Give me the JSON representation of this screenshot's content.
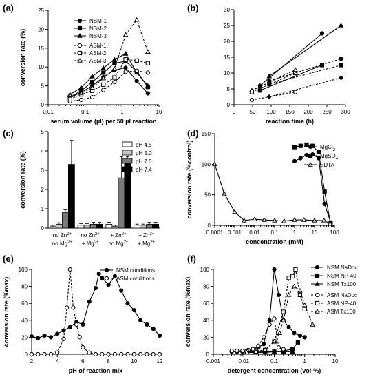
{
  "chart_data": [
    {
      "panel": "(a)",
      "type": "line",
      "xlabel": "serum volume (µl) per 50 µl reaction",
      "ylabel": "conversion rate (%)",
      "xscale": "log",
      "xlim": [
        0.01,
        10
      ],
      "ylim": [
        0,
        25
      ],
      "xticks": [
        0.01,
        0.1,
        1,
        10
      ],
      "xtick_labels": [
        "0.01",
        "0.1",
        "1",
        "10"
      ],
      "yticks": [
        0,
        5,
        10,
        15,
        20,
        25
      ],
      "legend_position": "top-left",
      "series": [
        {
          "name": "NSM-1",
          "marker": "filled-circle",
          "dash": false,
          "x": [
            0.039,
            0.078,
            0.156,
            0.3125,
            0.625,
            1.25,
            2.5,
            5
          ],
          "y": [
            1.8,
            3.3,
            5.0,
            7.3,
            9.2,
            9.8,
            6.3,
            3.0
          ]
        },
        {
          "name": "NSM-2",
          "marker": "filled-square",
          "dash": false,
          "x": [
            0.039,
            0.078,
            0.156,
            0.3125,
            0.625,
            1.25,
            2.5,
            5
          ],
          "y": [
            2.0,
            3.7,
            6.0,
            8.5,
            11.0,
            11.5,
            8.8,
            4.7
          ]
        },
        {
          "name": "NSM-3",
          "marker": "filled-triangle",
          "dash": false,
          "x": [
            0.039,
            0.078,
            0.156,
            0.3125,
            0.625,
            1.25,
            2.5,
            5
          ],
          "y": [
            2.7,
            4.5,
            7.5,
            9.7,
            12.0,
            13.5,
            8.5,
            5.0
          ]
        },
        {
          "name": "ASM-1",
          "marker": "open-circle",
          "dash": true,
          "x": [
            0.039,
            0.078,
            0.156,
            0.3125,
            0.625,
            1.25,
            2.5,
            5
          ],
          "y": [
            0.9,
            1.3,
            2.0,
            3.9,
            6.0,
            8.7,
            9.0,
            8.5
          ]
        },
        {
          "name": "ASM-2",
          "marker": "open-square",
          "dash": true,
          "x": [
            0.039,
            0.078,
            0.156,
            0.3125,
            0.625,
            1.25,
            2.5,
            5
          ],
          "y": [
            1.5,
            2.7,
            3.7,
            5.3,
            7.2,
            12.0,
            11.7,
            11.0
          ]
        },
        {
          "name": "ASM-3",
          "marker": "open-triangle",
          "dash": true,
          "x": [
            0.039,
            0.078,
            0.156,
            0.3125,
            0.625,
            1.25,
            2.5,
            5
          ],
          "y": [
            2.5,
            3.0,
            4.5,
            7.0,
            9.5,
            18.5,
            22.5,
            14.0
          ]
        }
      ]
    },
    {
      "panel": "(b)",
      "type": "line",
      "xlabel": "reaction time  (h)",
      "ylabel": "",
      "xscale": "linear",
      "xlim": [
        0,
        300
      ],
      "ylim": [
        0,
        30
      ],
      "xticks": [
        0,
        50,
        100,
        150,
        200,
        250,
        300
      ],
      "xtick_labels": [
        "0",
        "50",
        "100",
        "150",
        "200",
        "250",
        "300"
      ],
      "yticks": [
        0,
        5,
        10,
        15,
        20,
        25,
        30
      ],
      "series": [
        {
          "marker": "filled-circle",
          "dash": false,
          "x": [
            70,
            237
          ],
          "y": [
            6.0,
            22.5
          ]
        },
        {
          "marker": "filled-square",
          "dash": false,
          "x": [
            70,
            237
          ],
          "y": [
            4.5,
            12.5
          ]
        },
        {
          "marker": "filled-triangle",
          "dash": false,
          "x": [
            95,
            288
          ],
          "y": [
            9.0,
            25.0
          ]
        },
        {
          "marker": "open-circle",
          "dash": true,
          "x": [
            48,
            165
          ],
          "y": [
            1.5,
            4.0
          ]
        },
        {
          "marker": "open-square",
          "dash": true,
          "x": [
            48,
            165
          ],
          "y": [
            4.0,
            10.0
          ]
        },
        {
          "marker": "open-triangle",
          "dash": true,
          "x": [
            48,
            165
          ],
          "y": [
            4.5,
            11.0
          ]
        },
        {
          "marker": "filled-circle",
          "dash": true,
          "x": [
            95,
            288
          ],
          "y": [
            7.5,
            14.5
          ]
        },
        {
          "marker": "filled-square",
          "dash": true,
          "x": [
            95,
            288
          ],
          "y": [
            6.5,
            12.5
          ]
        },
        {
          "marker": "filled-diamond",
          "dash": true,
          "x": [
            95,
            288
          ],
          "y": [
            2.5,
            8.5
          ]
        }
      ]
    },
    {
      "panel": "(c)",
      "type": "bar",
      "xlabel": "",
      "ylabel": "conversion rate (%)",
      "ylim": [
        0,
        5
      ],
      "yticks": [
        0,
        1,
        2,
        3,
        4,
        5
      ],
      "legend_position": "top-right",
      "groups": [
        {
          "line1": "no Zn",
          "sup1": "2+",
          "line2": "no Mg",
          "sup2": "2+"
        },
        {
          "line1": "no Zn",
          "sup1": "2+",
          "line2": "+ Mg",
          "sup2": "2+"
        },
        {
          "line1": "+ Zn",
          "sup1": "2+",
          "line2": "no Mg",
          "sup2": "2+"
        },
        {
          "line1": "+ Zn",
          "sup1": "2+",
          "line2": "+ Mg",
          "sup2": "2+"
        }
      ],
      "series": [
        {
          "name": "pH 4.5",
          "color": "#ffffff",
          "values": [
            0.1,
            0.15,
            0.2,
            0.15
          ],
          "errors": [
            0.05,
            0.08,
            0.1,
            0.06
          ]
        },
        {
          "name": "pH 5.0",
          "color": "#c8c8c8",
          "values": [
            0.2,
            0.15,
            0.1,
            0.15
          ],
          "errors": [
            0.08,
            0.08,
            0.05,
            0.06
          ]
        },
        {
          "name": "pH 7.0",
          "color": "#7a7a7a",
          "values": [
            0.8,
            0.2,
            2.6,
            0.2
          ],
          "errors": [
            0.15,
            0.1,
            1.1,
            0.1
          ]
        },
        {
          "name": "pH 7.4",
          "color": "#000000",
          "values": [
            3.3,
            0.2,
            3.5,
            0.2
          ],
          "errors": [
            1.25,
            0.1,
            0.2,
            0.1
          ]
        }
      ]
    },
    {
      "panel": "(d)",
      "type": "line",
      "xlabel": "concentration  (mM)",
      "ylabel": "conversion rate (%control)",
      "xscale": "log",
      "xlim": [
        0.0001,
        100
      ],
      "ylim": [
        0,
        150
      ],
      "xticks": [
        0.0001,
        0.001,
        0.01,
        0.1,
        1,
        10,
        100
      ],
      "xtick_labels": [
        "0.0001",
        "0.001",
        "0.01",
        "0.1",
        "1",
        "10",
        "100"
      ],
      "yticks": [
        0,
        50,
        100,
        150
      ],
      "legend_position": "top-right",
      "series": [
        {
          "name": "MgCl",
          "sub": "2",
          "marker": "filled-circle",
          "dash": false,
          "x": [
            1,
            2,
            4,
            8,
            16,
            32,
            64
          ],
          "y": [
            105,
            110,
            115,
            116,
            110,
            35,
            5
          ]
        },
        {
          "name": "MgSO",
          "sub": "4",
          "marker": "filled-square",
          "dash": false,
          "x": [
            1,
            2,
            4,
            8,
            16,
            32,
            64
          ],
          "y": [
            128,
            130,
            132,
            130,
            120,
            55,
            3
          ]
        },
        {
          "name": "EDTA",
          "marker": "open-triangle",
          "dash": false,
          "x": [
            0.0001,
            0.0003,
            0.001,
            0.003,
            0.01,
            0.03,
            0.1,
            0.3,
            1,
            3,
            10,
            30,
            60
          ],
          "y": [
            100,
            52,
            22,
            8,
            10,
            9,
            8,
            7,
            9,
            9,
            8,
            8,
            3
          ]
        }
      ]
    },
    {
      "panel": "(e)",
      "type": "line",
      "xlabel": "pH of reaction mix",
      "ylabel": "conversion rate (%max)",
      "xscale": "linear",
      "xlim": [
        2,
        12
      ],
      "ylim": [
        0,
        100
      ],
      "xticks": [
        2,
        4,
        6,
        8,
        10,
        12
      ],
      "xtick_labels": [
        "2",
        "4",
        "6",
        "8",
        "10",
        "12"
      ],
      "yticks": [
        0,
        20,
        40,
        60,
        80,
        100
      ],
      "legend_position": "top-right",
      "series": [
        {
          "name": "NSM conditions",
          "marker": "filled-circle",
          "dash": false,
          "x": [
            2,
            2.5,
            3,
            3.5,
            4,
            4.5,
            5,
            5.5,
            6,
            6.5,
            7,
            7.25,
            7.5,
            8,
            8.5,
            9,
            9.5,
            10,
            10.5,
            11,
            11.5,
            12
          ],
          "y": [
            21,
            19,
            22,
            20,
            24,
            28,
            32,
            38,
            35,
            62,
            78,
            95,
            90,
            82,
            92,
            75,
            60,
            52,
            40,
            35,
            30,
            22
          ]
        },
        {
          "name": "ASM conditions",
          "marker": "open-circle",
          "dash": true,
          "x": [
            2,
            2.5,
            3,
            3.5,
            4,
            4.5,
            4.75,
            5,
            5.25,
            5.5,
            5.75,
            6,
            6.5,
            7,
            7.5,
            8,
            8.5,
            9,
            9.5,
            10,
            10.5,
            11,
            11.5,
            12
          ],
          "y": [
            0,
            0,
            0,
            0,
            2,
            18,
            55,
            100,
            55,
            35,
            20,
            8,
            2,
            0,
            0,
            0,
            0,
            0,
            0,
            0,
            0,
            0,
            0,
            0
          ]
        }
      ]
    },
    {
      "panel": "(f)",
      "type": "line",
      "xlabel": "detergent concentration  (vol-%)",
      "ylabel": "conversion rate (%max)",
      "xscale": "log",
      "xlim": [
        0.001,
        10
      ],
      "ylim": [
        0,
        100
      ],
      "xticks": [
        0.001,
        0.01,
        0.1,
        1,
        10
      ],
      "xtick_labels": [
        "0.001",
        "0.01",
        "0.1",
        "1",
        "10"
      ],
      "yticks": [
        0,
        20,
        40,
        60,
        80,
        100
      ],
      "legend_position": "top-right",
      "series": [
        {
          "name": "NSM NaDoc",
          "marker": "filled-circle",
          "dash": false,
          "x": [
            0.004,
            0.006,
            0.009,
            0.014,
            0.02,
            0.03,
            0.045,
            0.07,
            0.1,
            0.14,
            0.2,
            0.3,
            0.45,
            0.7,
            1.0
          ],
          "y": [
            3,
            3,
            3,
            4,
            6,
            8,
            12,
            40,
            100,
            70,
            40,
            32,
            25,
            22,
            20
          ]
        },
        {
          "name": "NSM NP-40",
          "marker": "filled-square",
          "dash": false,
          "x": [
            0.0125,
            0.025,
            0.05,
            0.1,
            0.2,
            0.4,
            0.6
          ],
          "y": [
            3,
            3,
            3,
            3,
            4,
            6,
            14
          ]
        },
        {
          "name": "NSM Tx100",
          "marker": "filled-triangle",
          "dash": false,
          "x": [
            0.0125,
            0.025,
            0.05,
            0.1,
            0.2,
            0.4
          ],
          "y": [
            2,
            2,
            2,
            3,
            3,
            3
          ]
        },
        {
          "name": "ASM NaDoc",
          "marker": "open-circle",
          "dash": true,
          "x": [
            0.004,
            0.006,
            0.009,
            0.014,
            0.02,
            0.03,
            0.045,
            0.07,
            0.1,
            0.14,
            0.2
          ],
          "y": [
            4,
            4,
            4,
            5,
            6,
            10,
            20,
            35,
            42,
            8,
            6
          ]
        },
        {
          "name": "ASM NP-40",
          "marker": "open-square",
          "dash": true,
          "x": [
            0.0125,
            0.025,
            0.05,
            0.1,
            0.2,
            0.3,
            0.4,
            0.5,
            0.7,
            1.0
          ],
          "y": [
            3,
            4,
            5,
            15,
            50,
            90,
            92,
            100,
            70,
            53
          ]
        },
        {
          "name": "ASM Tx100",
          "marker": "open-triangle",
          "dash": true,
          "x": [
            0.0125,
            0.025,
            0.05,
            0.1,
            0.15,
            0.2,
            0.3,
            0.45,
            0.7,
            1.0,
            1.8
          ],
          "y": [
            2,
            3,
            5,
            15,
            25,
            40,
            70,
            80,
            75,
            58,
            35
          ]
        }
      ]
    }
  ]
}
